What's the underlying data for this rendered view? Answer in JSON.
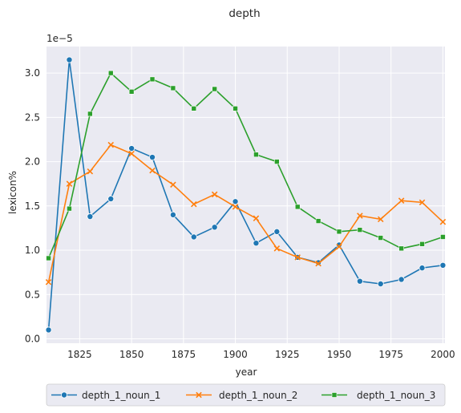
{
  "chart_data": {
    "type": "line",
    "title": "depth",
    "xlabel": "year",
    "ylabel": "lexicon%",
    "y_offset_label": "1e−5",
    "x": [
      1810,
      1820,
      1830,
      1840,
      1850,
      1860,
      1870,
      1880,
      1890,
      1900,
      1910,
      1920,
      1930,
      1940,
      1950,
      1960,
      1970,
      1980,
      1990,
      2000
    ],
    "xlim": [
      1809,
      2001
    ],
    "ylim": [
      -0.05,
      3.3
    ],
    "xticks": [
      "1825",
      "1850",
      "1875",
      "1900",
      "1925",
      "1950",
      "1975",
      "2000"
    ],
    "yticks": [
      "0.0",
      "0.5",
      "1.0",
      "1.5",
      "2.0",
      "2.5",
      "3.0"
    ],
    "grid": true,
    "legend_placement": "bottom-center",
    "series": [
      {
        "name": "depth_1_noun_1",
        "color": "#1f77b4",
        "marker": "circle",
        "values": [
          0.1,
          3.15,
          1.38,
          1.58,
          2.15,
          2.05,
          1.4,
          1.15,
          1.26,
          1.55,
          1.08,
          1.21,
          0.92,
          0.86,
          1.06,
          0.65,
          0.62,
          0.67,
          0.8,
          0.83
        ]
      },
      {
        "name": "depth_1_noun_2",
        "color": "#ff7f0e",
        "marker": "x",
        "values": [
          0.64,
          1.75,
          1.89,
          2.19,
          2.09,
          1.9,
          1.74,
          1.52,
          1.63,
          1.49,
          1.36,
          1.02,
          0.92,
          0.85,
          1.04,
          1.39,
          1.35,
          1.56,
          1.54,
          1.32
        ]
      },
      {
        "name": "depth_1_noun_3",
        "color": "#2ca02c",
        "marker": "square",
        "values": [
          0.91,
          1.47,
          2.54,
          3.0,
          2.79,
          2.93,
          2.83,
          2.6,
          2.82,
          2.6,
          2.08,
          2.0,
          1.49,
          1.33,
          1.21,
          1.23,
          1.14,
          1.02,
          1.07,
          1.15
        ]
      }
    ]
  }
}
